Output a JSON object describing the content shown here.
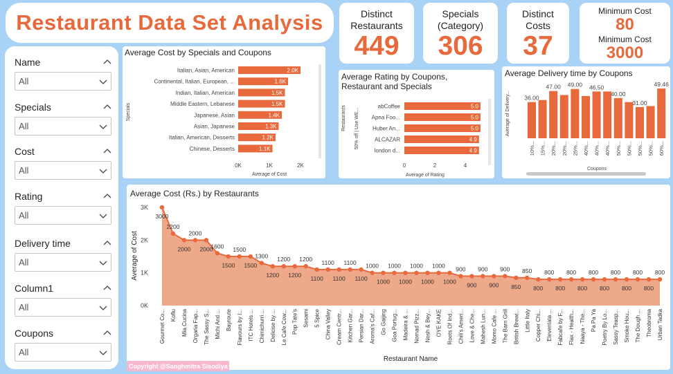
{
  "title": "Restaurant Data Set Analysis",
  "kpis": [
    {
      "label_line1": "Distinct",
      "label_line2": "Restaurants",
      "value": "449"
    },
    {
      "label_line1": "Specials",
      "label_line2": "(Category)",
      "value": "306"
    },
    {
      "label_line1": "Distinct",
      "label_line2": "Costs",
      "value": "37"
    }
  ],
  "kpi_minmax": {
    "min_label": "Minimum Cost",
    "min_value": "80",
    "max_label": "Minimum Cost",
    "max_value": "3000"
  },
  "slicers": [
    {
      "label": "Name",
      "value": "All"
    },
    {
      "label": "Specials",
      "value": "All"
    },
    {
      "label": "Cost",
      "value": "All"
    },
    {
      "label": "Rating",
      "value": "All"
    },
    {
      "label": "Delivery time",
      "value": "All"
    },
    {
      "label": "Column1",
      "value": "All"
    },
    {
      "label": "Coupons",
      "value": "All"
    }
  ],
  "copyright": "Copyright @Sanghmitra Sisodiya",
  "colors": {
    "accent": "#e8693b",
    "area": "#eea98a",
    "background": "#a9d2f7"
  },
  "chart_data": [
    {
      "type": "bar",
      "orientation": "horizontal",
      "title": "Average Cost by Specials and Coupons",
      "ylabel": "Specials",
      "xlabel": "Average of Cost",
      "categories": [
        "Italian, Asian, American",
        "Continental, Italian, European, ...",
        "Indian, Italian, American",
        "Middle Eastern, Lebanese",
        "Japanese, Asian",
        "Asian, Japanese",
        "Italian, American, Desserts",
        "Chinese, Desserts"
      ],
      "values": [
        2000,
        1600,
        1500,
        1500,
        1400,
        1300,
        1200,
        1100
      ],
      "data_labels": [
        "2.0K",
        "1.6K",
        "1.5K",
        "1.5K",
        "1.4K",
        "1.3K",
        "1.2K",
        "1.1K"
      ],
      "xticks": [
        "0K",
        "1K",
        "2K"
      ],
      "xlim": [
        0,
        2000
      ]
    },
    {
      "type": "bar",
      "orientation": "horizontal",
      "title": "Average Rating by Coupons, Restaurant and Specials",
      "ylabel": "Restaurants",
      "xlabel": "Average of Rating",
      "group_label": "50% off | Use WE...",
      "categories": [
        "abCoffee",
        "Apna Foo...",
        "Huber An...",
        "ALCAZAR",
        "london d..."
      ],
      "values": [
        5.0,
        5.0,
        5.0,
        4.9,
        4.9
      ],
      "data_labels": [
        "5.0",
        "5.0",
        "5.0",
        "4.9",
        "4.9"
      ],
      "xticks": [
        "0",
        "2",
        "4"
      ],
      "xlim": [
        0,
        5
      ]
    },
    {
      "type": "bar",
      "title": "Average Delivery time by Coupons",
      "ylabel": "Average of Delivery...",
      "xlabel": "Coupons",
      "categories": [
        "10%...",
        "15%...",
        "20%...",
        "20%...",
        "25%...",
        "40%...",
        "40%...",
        "40%...",
        "50%...",
        "50%...",
        "50%...",
        "50%...",
        "60%..."
      ],
      "values": [
        36,
        38,
        47,
        43,
        49,
        42,
        46.5,
        46.5,
        40,
        36,
        31,
        32,
        49.46
      ],
      "data_labels": [
        "36.00",
        "",
        "47.00",
        "",
        "49.00",
        "",
        "46.50",
        "",
        "40.00",
        "",
        "31.00",
        "",
        "49.46"
      ],
      "ylim": [
        0,
        55
      ]
    },
    {
      "type": "area",
      "title": "Average Cost (Rs.) by Restaurants",
      "ylabel": "Average of Cost",
      "xlabel": "Restaurant Name",
      "yticks": [
        "0K",
        "1K",
        "2K",
        "3K"
      ],
      "ylim": [
        0,
        3000
      ],
      "categories": [
        "Gourmet Co...",
        "Koflu",
        "Mia Cucina",
        "Orgaria Fap...",
        "The Sassy S...",
        "Michi And ...",
        "Bayroute",
        "Flavours by I...",
        "ITC Hotels ...",
        "Chimichurri ...",
        "Delicise by ...",
        "Le Cafe Cow...",
        "Pop Tate's",
        "Sesami",
        "5 Spice",
        "China Valley",
        "Cream Centr...",
        "Kitchen Gar...",
        "Persian Dar...",
        "Aroma's Caf...",
        "Go Gaijing",
        "Goa Portug...",
        "Madeira & ...",
        "Nomad Pizz...",
        "Nosh & Bey...",
        "OYE KAKE",
        "Roots Of Ind...",
        "Chili's Ameri...",
        "Love & Che...",
        "Mahesh Lun...",
        "Momo Cafe ...",
        "The Barn Grill",
        "British Brewi...",
        "Little Italy",
        "Copper Chi...",
        "Eleventata ...",
        "Fabcafe by F...",
        "Flax - Health...",
        "Naaya - The...",
        "Pa Pa Ya",
        "Poetry By Lo...",
        "Sassy Teasp...",
        "Smoke Hou...",
        "The Dough ...",
        "Theobroma",
        "Urban Tadka"
      ],
      "values": [
        3000,
        2200,
        2000,
        2000,
        2000,
        1600,
        1500,
        1500,
        1500,
        1300,
        1200,
        1200,
        1200,
        1200,
        1100,
        1100,
        1100,
        1100,
        1100,
        1000,
        1000,
        1000,
        1000,
        1000,
        1000,
        1000,
        1000,
        900,
        900,
        900,
        900,
        900,
        850,
        850,
        800,
        800,
        800,
        800,
        800,
        800,
        800,
        800,
        800,
        800,
        800,
        800
      ],
      "data_labels": [
        "3000",
        "2200",
        "2000",
        "2000",
        "2000",
        "1600",
        "1500",
        "1500",
        "1500",
        "1300",
        "1200",
        "1200",
        "1200",
        "1200",
        "1100",
        "1100",
        "1100",
        "1100",
        "1100",
        "1000",
        "1000",
        "1000",
        "1000",
        "1000",
        "1000",
        "1000",
        "1000",
        "900",
        "900",
        "900",
        "900",
        "900",
        "850",
        "850",
        "800",
        "800",
        "800",
        "800",
        "800",
        "800",
        "800",
        "800",
        "800",
        "800",
        "800",
        "800"
      ]
    }
  ]
}
